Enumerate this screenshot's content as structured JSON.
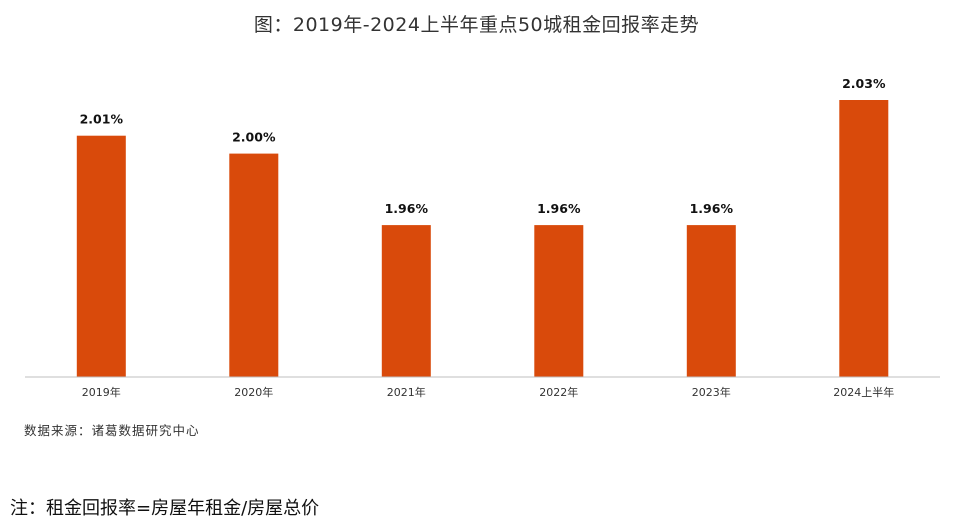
{
  "title": "图：2019年-2024上半年重点50城租金回报率走势",
  "source": "数据来源：诸葛数据研究中心",
  "note": "注：租金回报率=房屋年租金/房屋总价",
  "colors": {
    "bar": "#D94A0B",
    "axis": "#bfbfbf",
    "label": "#111111"
  },
  "chart_data": {
    "type": "bar",
    "categories": [
      "2019年",
      "2020年",
      "2021年",
      "2022年",
      "2023年",
      "2024上半年"
    ],
    "values": [
      2.01,
      2.0,
      1.96,
      1.96,
      1.96,
      2.03
    ],
    "data_labels": [
      "2.01%",
      "2.00%",
      "1.96%",
      "1.96%",
      "1.96%",
      "2.03%"
    ],
    "unit": "%",
    "title": "图：2019年-2024上半年重点50城租金回报率走势",
    "xlabel": "",
    "ylabel": "",
    "grid": false,
    "legend": "none"
  }
}
